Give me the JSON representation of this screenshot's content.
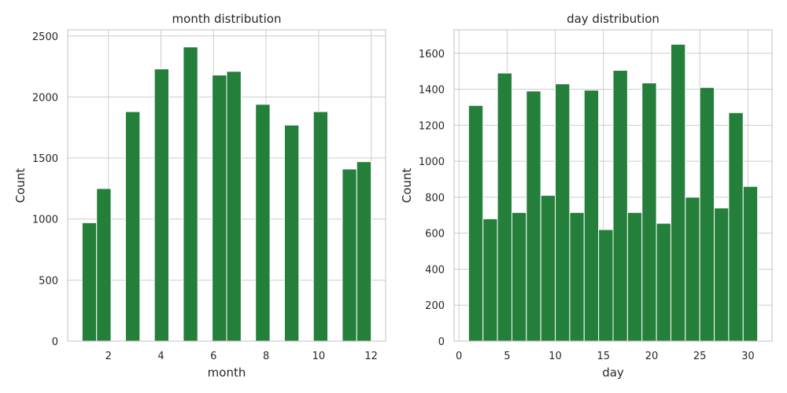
{
  "chart_data": [
    {
      "type": "bar",
      "title": "month distribution",
      "xlabel": "month",
      "ylabel": "Count",
      "xlim": [
        0.45,
        12.55
      ],
      "ylim": [
        0,
        2550
      ],
      "xticks": [
        2,
        4,
        6,
        8,
        10,
        12
      ],
      "yticks": [
        0,
        500,
        1000,
        1500,
        2000,
        2500
      ],
      "grid": true,
      "bar_color": "#237f3a",
      "bins": [
        {
          "x0": 1.0,
          "x1": 1.55,
          "value": 970
        },
        {
          "x0": 1.55,
          "x1": 2.1,
          "value": 1250
        },
        {
          "x0": 2.1,
          "x1": 2.65,
          "value": 0
        },
        {
          "x0": 2.65,
          "x1": 3.2,
          "value": 1880
        },
        {
          "x0": 3.2,
          "x1": 3.75,
          "value": 0
        },
        {
          "x0": 3.75,
          "x1": 4.3,
          "value": 2230
        },
        {
          "x0": 4.3,
          "x1": 4.85,
          "value": 0
        },
        {
          "x0": 4.85,
          "x1": 5.4,
          "value": 2410
        },
        {
          "x0": 5.4,
          "x1": 5.95,
          "value": 0
        },
        {
          "x0": 5.95,
          "x1": 6.5,
          "value": 2180
        },
        {
          "x0": 6.5,
          "x1": 7.05,
          "value": 2210
        },
        {
          "x0": 7.05,
          "x1": 7.6,
          "value": 0
        },
        {
          "x0": 7.6,
          "x1": 8.15,
          "value": 1940
        },
        {
          "x0": 8.15,
          "x1": 8.7,
          "value": 0
        },
        {
          "x0": 8.7,
          "x1": 9.25,
          "value": 1770
        },
        {
          "x0": 9.25,
          "x1": 9.8,
          "value": 0
        },
        {
          "x0": 9.8,
          "x1": 10.35,
          "value": 1880
        },
        {
          "x0": 10.35,
          "x1": 10.9,
          "value": 0
        },
        {
          "x0": 10.9,
          "x1": 11.45,
          "value": 1410
        },
        {
          "x0": 11.45,
          "x1": 12.0,
          "value": 1470
        }
      ]
    },
    {
      "type": "bar",
      "title": "day distribution",
      "xlabel": "day",
      "ylabel": "Count",
      "xlim": [
        -0.5,
        32.5
      ],
      "ylim": [
        0,
        1730
      ],
      "xticks": [
        0,
        5,
        10,
        15,
        20,
        25,
        30
      ],
      "yticks": [
        0,
        200,
        400,
        600,
        800,
        1000,
        1200,
        1400,
        1600
      ],
      "grid": true,
      "bar_color": "#237f3a",
      "bins": [
        {
          "x0": 1.0,
          "x1": 2.5,
          "value": 1310
        },
        {
          "x0": 2.5,
          "x1": 4.0,
          "value": 680
        },
        {
          "x0": 4.0,
          "x1": 5.5,
          "value": 1490
        },
        {
          "x0": 5.5,
          "x1": 7.0,
          "value": 715
        },
        {
          "x0": 7.0,
          "x1": 8.5,
          "value": 1390
        },
        {
          "x0": 8.5,
          "x1": 10.0,
          "value": 810
        },
        {
          "x0": 10.0,
          "x1": 11.5,
          "value": 1430
        },
        {
          "x0": 11.5,
          "x1": 13.0,
          "value": 715
        },
        {
          "x0": 13.0,
          "x1": 14.5,
          "value": 1395
        },
        {
          "x0": 14.5,
          "x1": 16.0,
          "value": 620
        },
        {
          "x0": 16.0,
          "x1": 17.5,
          "value": 1505
        },
        {
          "x0": 17.5,
          "x1": 19.0,
          "value": 715
        },
        {
          "x0": 19.0,
          "x1": 20.5,
          "value": 1435
        },
        {
          "x0": 20.5,
          "x1": 22.0,
          "value": 655
        },
        {
          "x0": 22.0,
          "x1": 23.5,
          "value": 1650
        },
        {
          "x0": 23.5,
          "x1": 25.0,
          "value": 800
        },
        {
          "x0": 25.0,
          "x1": 26.5,
          "value": 1410
        },
        {
          "x0": 26.5,
          "x1": 28.0,
          "value": 740
        },
        {
          "x0": 28.0,
          "x1": 29.5,
          "value": 1270
        },
        {
          "x0": 29.5,
          "x1": 31.0,
          "value": 860
        }
      ]
    }
  ]
}
